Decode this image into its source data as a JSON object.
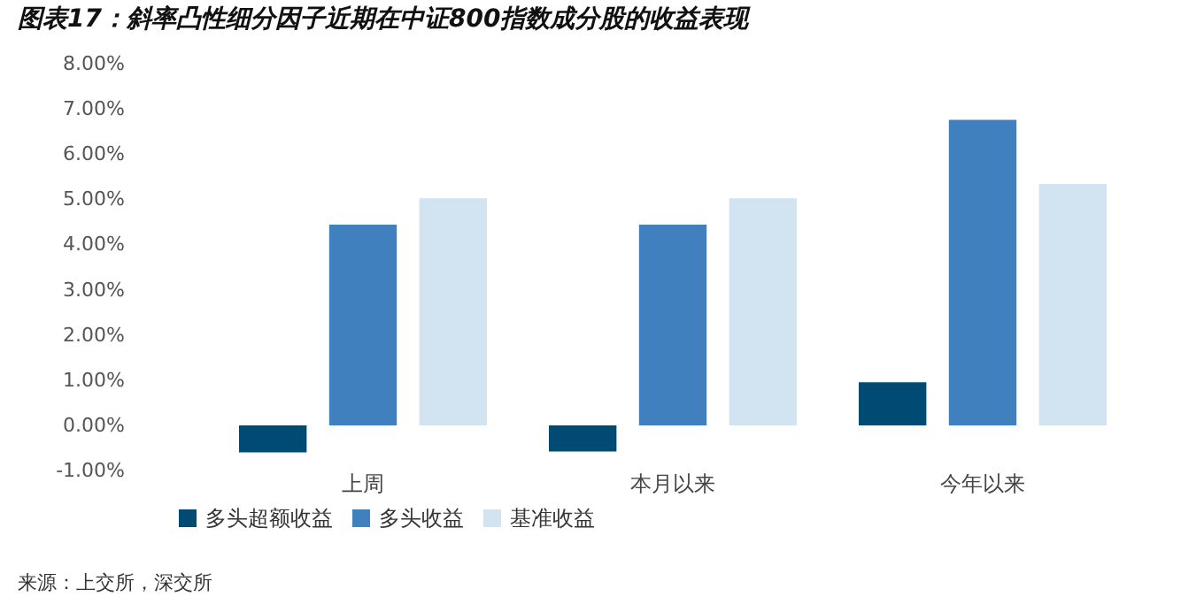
{
  "chart_data": {
    "type": "bar",
    "title": "图表17：斜率凸性细分因子近期在中证800指数成分股的收益表现",
    "categories": [
      "上周",
      "本月以来",
      "今年以来"
    ],
    "series": [
      {
        "name": "多头超额收益",
        "color": "#004b73",
        "values": [
          -0.6,
          -0.58,
          0.95
        ]
      },
      {
        "name": "多头收益",
        "color": "#4180be",
        "values": [
          4.44,
          4.44,
          6.76
        ]
      },
      {
        "name": "基准收益",
        "color": "#d2e3f2",
        "values": [
          5.02,
          5.02,
          5.34
        ]
      }
    ],
    "ylim": [
      -1,
      8
    ],
    "yticks": [
      {
        "value": -1,
        "label": "-1.00%"
      },
      {
        "value": 0,
        "label": "0.00%"
      },
      {
        "value": 1,
        "label": "1.00%"
      },
      {
        "value": 2,
        "label": "2.00%"
      },
      {
        "value": 3,
        "label": "3.00%"
      },
      {
        "value": 4,
        "label": "4.00%"
      },
      {
        "value": 5,
        "label": "5.00%"
      },
      {
        "value": 6,
        "label": "6.00%"
      },
      {
        "value": 7,
        "label": "7.00%"
      },
      {
        "value": 8,
        "label": "8.00%"
      }
    ],
    "grid": false,
    "legend": "bottom",
    "annotations": [
      "来源：上交所，深交所"
    ]
  }
}
